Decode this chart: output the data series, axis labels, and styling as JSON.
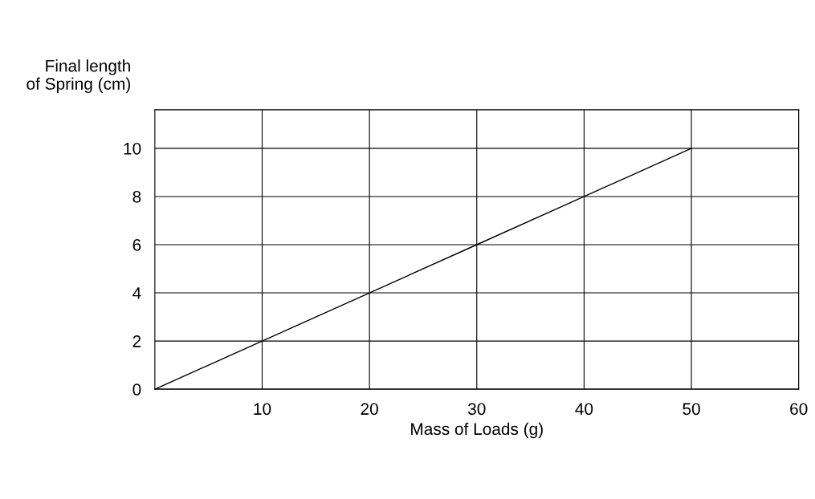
{
  "chart_data": {
    "type": "line",
    "xlabel": "Mass of Loads (g)",
    "ylabel": "Final length\nof Spring (cm)",
    "x": [
      0,
      10,
      20,
      30,
      40,
      50
    ],
    "series": [
      {
        "color": "#000000",
        "values": [
          0,
          2,
          4,
          6,
          8,
          10
        ]
      }
    ],
    "xlim": [
      0,
      60
    ],
    "ylim": [
      0,
      11.6
    ],
    "xticks": [
      10,
      20,
      30,
      40,
      50,
      60
    ],
    "yticks": [
      0,
      2,
      4,
      6,
      8,
      10
    ],
    "grid": true,
    "marker": "none",
    "line_style": "solid"
  }
}
